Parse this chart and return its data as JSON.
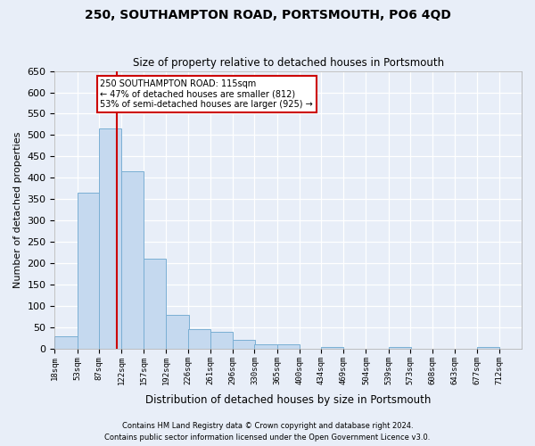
{
  "title": "250, SOUTHAMPTON ROAD, PORTSMOUTH, PO6 4QD",
  "subtitle": "Size of property relative to detached houses in Portsmouth",
  "xlabel": "Distribution of detached houses by size in Portsmouth",
  "ylabel": "Number of detached properties",
  "bar_color": "#c5d9ef",
  "bar_edge_color": "#7aafd4",
  "background_color": "#e8eef8",
  "annotation_box_text": "250 SOUTHAMPTON ROAD: 115sqm\n← 47% of detached houses are smaller (812)\n53% of semi-detached houses are larger (925) →",
  "annotation_box_color": "#ffffff",
  "annotation_box_edge_color": "#cc0000",
  "vline_x_bin_index": 2.77,
  "vline_color": "#cc0000",
  "footer_line1": "Contains HM Land Registry data © Crown copyright and database right 2024.",
  "footer_line2": "Contains public sector information licensed under the Open Government Licence v3.0.",
  "bins": [
    18,
    53,
    87,
    122,
    157,
    192,
    226,
    261,
    296,
    330,
    365,
    400,
    434,
    469,
    504,
    539,
    573,
    608,
    643,
    677,
    712
  ],
  "values": [
    30,
    365,
    515,
    415,
    210,
    80,
    45,
    40,
    20,
    10,
    10,
    0,
    5,
    0,
    0,
    5,
    0,
    0,
    0,
    5
  ],
  "tick_labels": [
    "18sqm",
    "53sqm",
    "87sqm",
    "122sqm",
    "157sqm",
    "192sqm",
    "226sqm",
    "261sqm",
    "296sqm",
    "330sqm",
    "365sqm",
    "400sqm",
    "434sqm",
    "469sqm",
    "504sqm",
    "539sqm",
    "573sqm",
    "608sqm",
    "643sqm",
    "677sqm",
    "712sqm"
  ],
  "ylim": [
    0,
    650
  ],
  "yticks": [
    0,
    50,
    100,
    150,
    200,
    250,
    300,
    350,
    400,
    450,
    500,
    550,
    600,
    650
  ]
}
